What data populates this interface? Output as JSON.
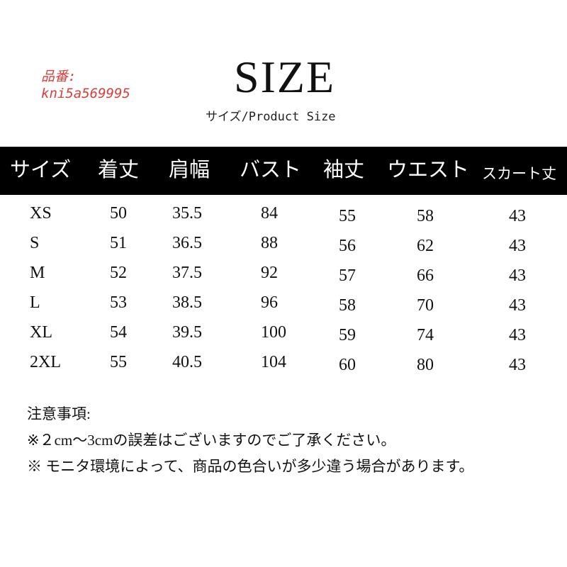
{
  "product_code": {
    "label": "品番:",
    "value": "kni5a569995"
  },
  "title": "SIZE",
  "subtitle": "サイズ/Product Size",
  "table": {
    "headers": [
      "サイズ",
      "着丈",
      "肩幅",
      "バスト",
      "袖丈",
      "ウエスト",
      "スカート丈"
    ],
    "rows": [
      [
        "XS",
        "50",
        "35.5",
        "84",
        "55",
        "58",
        "43"
      ],
      [
        "S",
        "51",
        "36.5",
        "88",
        "56",
        "62",
        "43"
      ],
      [
        "M",
        "52",
        "37.5",
        "92",
        "57",
        "66",
        "43"
      ],
      [
        "L",
        "53",
        "38.5",
        "96",
        "58",
        "70",
        "43"
      ],
      [
        "XL",
        "54",
        "39.5",
        "100",
        "59",
        "74",
        "43"
      ],
      [
        "2XL",
        "55",
        "40.5",
        "104",
        "60",
        "80",
        "43"
      ]
    ]
  },
  "notes": {
    "heading": "注意事項:",
    "items": [
      "※２cm～3cmの誤差はございますのでご了承ください。",
      "※ モニタ環境によって、商品の色合いが多少違う場合があります。"
    ]
  },
  "colors": {
    "code": "#d9403a",
    "header_bg": "#000000"
  }
}
